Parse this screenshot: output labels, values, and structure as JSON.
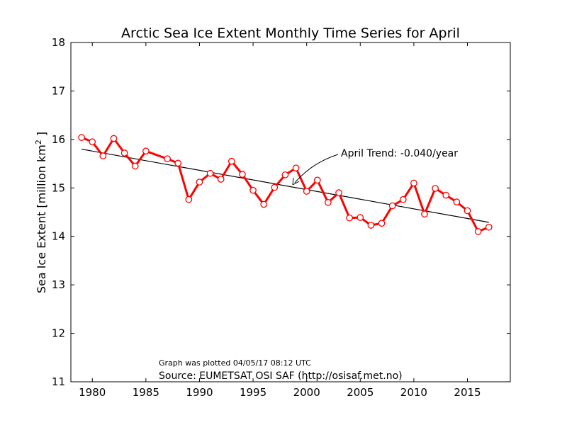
{
  "chart_data": {
    "type": "line",
    "title": "Arctic Sea Ice Extent Monthly Time Series for April",
    "ylabel_main": "Sea Ice Extent [million km",
    "ylabel_sup": "2",
    "ylabel_end": " ]",
    "xlabel": "",
    "xlim": [
      1978,
      2019
    ],
    "ylim": [
      11,
      18
    ],
    "x_ticks": [
      1980,
      1985,
      1990,
      1995,
      2000,
      2005,
      2010,
      2015
    ],
    "y_ticks": [
      11,
      12,
      13,
      14,
      15,
      16,
      17,
      18
    ],
    "grid": false,
    "series": [
      {
        "color": "#ff0000",
        "marker": "circle",
        "x": [
          1979,
          1980,
          1981,
          1982,
          1983,
          1984,
          1985,
          1987,
          1988,
          1989,
          1990,
          1991,
          1992,
          1993,
          1994,
          1995,
          1996,
          1997,
          1998,
          1999,
          2000,
          2001,
          2002,
          2003,
          2004,
          2005,
          2006,
          2007,
          2008,
          2009,
          2010,
          2011,
          2012,
          2013,
          2014,
          2015,
          2016,
          2017
        ],
        "values": [
          16.04,
          15.95,
          15.66,
          16.02,
          15.72,
          15.45,
          15.76,
          15.6,
          15.51,
          14.76,
          15.12,
          15.3,
          15.18,
          15.55,
          15.28,
          14.95,
          14.66,
          15.01,
          15.27,
          15.41,
          14.93,
          15.16,
          14.7,
          14.9,
          14.38,
          14.39,
          14.23,
          14.27,
          14.63,
          14.76,
          15.1,
          14.46,
          14.99,
          14.85,
          14.71,
          14.53,
          14.1,
          14.19
        ]
      }
    ],
    "trend": {
      "color": "#000000",
      "x": [
        1979,
        2017
      ],
      "values": [
        15.8,
        14.29
      ]
    },
    "annotation": {
      "text": "April Trend: -0.040/year",
      "x": 1998.6,
      "y": 15.04
    },
    "notes": {
      "plotted": "Graph was plotted 04/05/17 08:12 UTC",
      "source": "Source: EUMETSAT OSI SAF (http://osisaf.met.no)"
    }
  }
}
